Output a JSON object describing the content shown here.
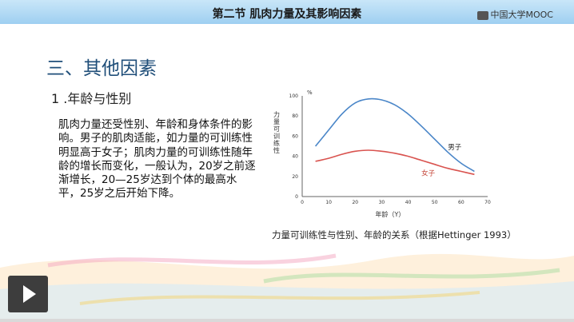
{
  "header": {
    "title": "第二节 肌肉力量及其影响因素",
    "brand": "中国大学MOOC"
  },
  "section": {
    "title": "三、其他因素",
    "subtitle": "1 .年龄与性别",
    "body": "肌肉力量还受性别、年龄和身体条件的影响。男子的肌肉适能，如力量的可训练性明显高于女子；肌肉力量的可训练性随年龄的增长而变化，一般认为，20岁之前逐渐增长，20—25岁达到个体的最高水平，25岁之后开始下降。"
  },
  "chart_data": {
    "type": "line",
    "title": "",
    "xlabel": "年龄（Y）",
    "ylabel": "力量可训练性",
    "y_unit": "%",
    "xlim": [
      0,
      70
    ],
    "ylim": [
      0,
      100
    ],
    "x_ticks": [
      0,
      10,
      20,
      30,
      40,
      50,
      60,
      70
    ],
    "y_ticks": [
      0,
      20,
      40,
      60,
      80,
      100
    ],
    "grid": false,
    "series": [
      {
        "name": "男子",
        "color": "#4a86c8",
        "x": [
          5,
          10,
          15,
          20,
          25,
          30,
          35,
          40,
          45,
          50,
          55,
          60,
          65
        ],
        "y": [
          50,
          66,
          82,
          93,
          97,
          96,
          91,
          82,
          70,
          57,
          44,
          33,
          25
        ]
      },
      {
        "name": "女子",
        "color": "#d9534f",
        "x": [
          5,
          10,
          15,
          20,
          25,
          30,
          35,
          40,
          45,
          50,
          55,
          60,
          65
        ],
        "y": [
          35,
          38,
          42,
          45,
          46,
          45,
          43,
          40,
          36,
          32,
          28,
          25,
          22
        ]
      }
    ]
  },
  "caption": "力量可训练性与性别、年龄的关系（根据Hettinger 1993）",
  "player": {
    "progress": 0
  }
}
